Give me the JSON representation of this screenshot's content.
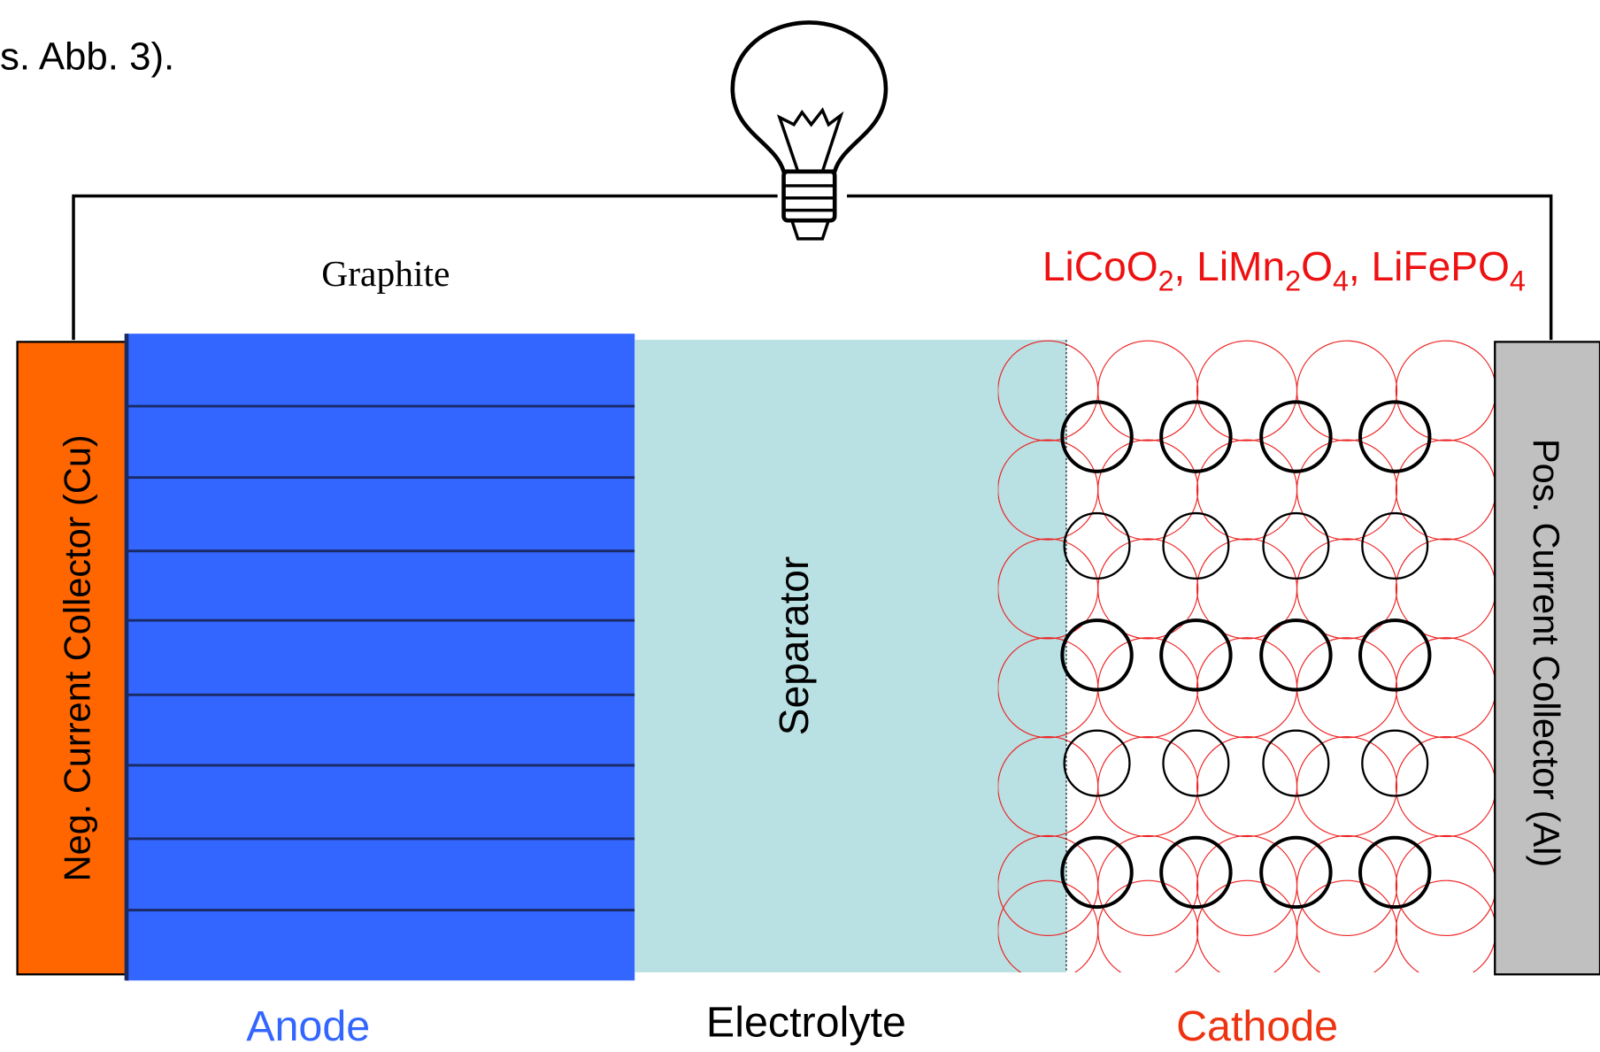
{
  "caption": "s. Abb. 3).",
  "anode_material": "Graphite",
  "cathode_materials": {
    "separator": ", ",
    "formulas": [
      [
        "LiCoO",
        "2"
      ],
      [
        "LiMn",
        "2",
        "O",
        "4"
      ],
      [
        "LiFePO",
        "4"
      ]
    ]
  },
  "labels": {
    "neg_collector": "Neg. Current Collector (Cu)",
    "pos_collector": "Pos. Current Collector (Al)",
    "separator": "Separator",
    "anode": "Anode",
    "electrolyte": "Electrolyte",
    "cathode": "Cathode"
  }
}
